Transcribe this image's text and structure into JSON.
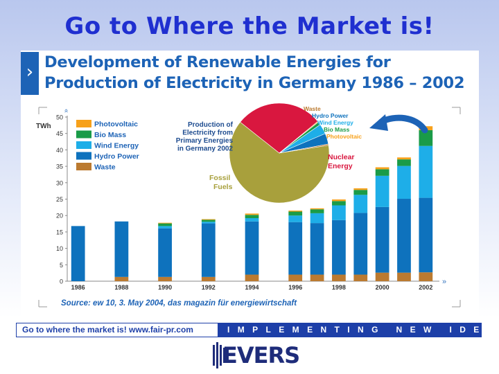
{
  "slide": {
    "title": "Go to Where the Market is!"
  },
  "chart_header": {
    "title_line1": "Development of Renewable Energies for",
    "title_line2": "Production of Electricity in Germany 1986 – 2002"
  },
  "footer": {
    "left_text": "Go to where the market is!   www.fair-pr.com",
    "right_text": "IMPLEMENTING NEW IDEAS"
  },
  "logo": {
    "text": "EVERS"
  },
  "colors": {
    "brand_blue": "#1d63b6",
    "title_blue": "#1f2fd0",
    "photovoltaic": "#f7a11a",
    "bio_mass": "#1a9b48",
    "wind_energy": "#1eaee8",
    "hydro_power": "#0e72bd",
    "waste": "#bb7a30",
    "fossil_fuels": "#a8a03c",
    "nuclear_energy": "#d9173f"
  },
  "chart_data": [
    {
      "type": "bar",
      "stacked": true,
      "ylabel": "TWh",
      "ylim": [
        0,
        50
      ],
      "yticks": [
        0,
        5,
        10,
        15,
        20,
        25,
        30,
        35,
        40,
        45,
        50
      ],
      "grid": false,
      "legend_placement": "top-left",
      "categories": [
        "1986",
        "1987",
        "1988",
        "1989",
        "1990",
        "1991",
        "1992",
        "1993",
        "1994",
        "1995",
        "1996",
        "1997",
        "1998",
        "1999",
        "2000",
        "2001",
        "2002"
      ],
      "xtick_labels": [
        "1986",
        "",
        "1988",
        "",
        "1990",
        "",
        "1992",
        "",
        "1994",
        "",
        "1996",
        "",
        "1998",
        "",
        "2000",
        "",
        "2002"
      ],
      "series": [
        {
          "name": "Waste",
          "color": "#bb7a30",
          "values": [
            null,
            null,
            1.3,
            null,
            1.3,
            null,
            1.3,
            null,
            2.0,
            null,
            2.0,
            2.0,
            2.0,
            2.0,
            2.6,
            2.6,
            2.7
          ]
        },
        {
          "name": "Hydro Power",
          "color": "#0e72bd",
          "values": [
            null,
            null,
            16.9,
            null,
            14.8,
            null,
            16.3,
            null,
            16.2,
            null,
            16.0,
            15.7,
            16.6,
            18.8,
            20.0,
            22.5,
            22.7
          ]
        },
        {
          "name": "Wind Energy",
          "color": "#1eaee8",
          "values": [
            null,
            null,
            0,
            null,
            0.7,
            null,
            0.5,
            null,
            1.0,
            null,
            2.0,
            3.0,
            4.5,
            5.5,
            9.5,
            10.0,
            15.8
          ]
        },
        {
          "name": "Bio Mass",
          "color": "#1a9b48",
          "values": [
            null,
            null,
            0,
            null,
            0.8,
            null,
            0.6,
            null,
            1.0,
            null,
            1.2,
            1.2,
            1.3,
            1.5,
            2.0,
            2.0,
            4.8
          ]
        },
        {
          "name": "Photovoltaic",
          "color": "#f7a11a",
          "values": [
            null,
            null,
            0,
            null,
            0.2,
            null,
            0.2,
            null,
            0.4,
            null,
            0.3,
            0.3,
            0.5,
            0.5,
            0.6,
            0.6,
            1.2
          ]
        }
      ],
      "base_values": [
        16.8,
        null,
        null,
        null,
        null,
        null,
        null,
        null,
        null,
        null,
        null,
        null,
        null,
        null,
        null,
        null,
        null
      ],
      "source": "Source: ew 10, 3. May 2004, das magazin für energiewirtschaft"
    },
    {
      "type": "pie",
      "title": "Production of Electricity from Primary Energies in Germany 2002",
      "slices": [
        {
          "name": "Fossil Fuels",
          "value": 63.5,
          "color": "#a8a03c"
        },
        {
          "name": "Nuclear Energy",
          "value": 28.5,
          "color": "#d9173f"
        },
        {
          "name": "Photovoltaic",
          "value": 0.3,
          "color": "#f7a11a"
        },
        {
          "name": "Bio Mass",
          "value": 1.0,
          "color": "#1a9b48"
        },
        {
          "name": "Wind Energy",
          "value": 3.3,
          "color": "#1eaee8"
        },
        {
          "name": "Hydro Power",
          "value": 3.5,
          "color": "#0e72bd"
        },
        {
          "name": "Waste",
          "value": 0.4,
          "color": "#bb7a30"
        }
      ],
      "labels": {
        "fossil": "Fossil Fuels",
        "nuclear": "Nuclear Energy",
        "waste": "Waste",
        "hydro": "Hydro Power",
        "wind": "Wind Energy",
        "bio": "Bio Mass",
        "photo": "Photovoltaic"
      }
    }
  ]
}
